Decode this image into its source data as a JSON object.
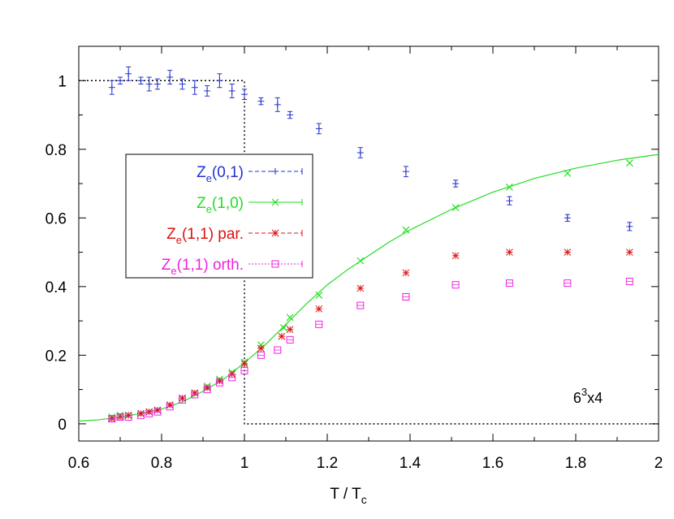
{
  "chart_data": {
    "type": "scatter",
    "xlabel": "T / T",
    "xlabel_sub": "c",
    "ylabel": "",
    "xlim": [
      0.6,
      2.0
    ],
    "ylim": [
      -0.05,
      1.1
    ],
    "xticks": [
      "0.6",
      "0.8",
      "1",
      "1.2",
      "1.4",
      "1.6",
      "1.8",
      "2"
    ],
    "yticks": [
      "0",
      "0.2",
      "0.4",
      "0.6",
      "0.8",
      "1"
    ],
    "annotation": {
      "base": "6",
      "sup": "3",
      "rest": "x4"
    },
    "legend_position": "upper-left",
    "grid": false,
    "series": [
      {
        "name_main": "Z",
        "name_sub": "e",
        "name_rest": "(0,1)",
        "color": "#2233cc",
        "marker": "plus",
        "line": "dashed",
        "points": [
          [
            0.68,
            0.98,
            0.02
          ],
          [
            0.7,
            1.0,
            0.01
          ],
          [
            0.72,
            1.02,
            0.02
          ],
          [
            0.75,
            1.0,
            0.01
          ],
          [
            0.77,
            0.99,
            0.02
          ],
          [
            0.79,
            0.99,
            0.015
          ],
          [
            0.82,
            1.01,
            0.02
          ],
          [
            0.85,
            0.99,
            0.015
          ],
          [
            0.88,
            0.98,
            0.02
          ],
          [
            0.91,
            0.97,
            0.015
          ],
          [
            0.94,
            1.0,
            0.02
          ],
          [
            0.97,
            0.97,
            0.02
          ],
          [
            1.0,
            0.96,
            0.015
          ],
          [
            1.04,
            0.94,
            0.01
          ],
          [
            1.08,
            0.93,
            0.02
          ],
          [
            1.11,
            0.9,
            0.01
          ],
          [
            1.18,
            0.86,
            0.015
          ],
          [
            1.28,
            0.79,
            0.015
          ],
          [
            1.39,
            0.735,
            0.015
          ],
          [
            1.51,
            0.7,
            0.01
          ],
          [
            1.64,
            0.65,
            0.012
          ],
          [
            1.78,
            0.6,
            0.01
          ],
          [
            1.93,
            0.575,
            0.012
          ]
        ]
      },
      {
        "name_main": "Z",
        "name_sub": "e",
        "name_rest": "(1,0)",
        "color": "#22dd22",
        "marker": "cross",
        "line": "solid",
        "points": [
          [
            0.68,
            0.02
          ],
          [
            0.7,
            0.025
          ],
          [
            0.72,
            0.025
          ],
          [
            0.75,
            0.03
          ],
          [
            0.77,
            0.035
          ],
          [
            0.79,
            0.04
          ],
          [
            0.82,
            0.055
          ],
          [
            0.85,
            0.075
          ],
          [
            0.88,
            0.09
          ],
          [
            0.91,
            0.11
          ],
          [
            0.94,
            0.13
          ],
          [
            0.97,
            0.15
          ],
          [
            1.0,
            0.18
          ],
          [
            1.04,
            0.23
          ],
          [
            1.095,
            0.28
          ],
          [
            1.11,
            0.31
          ],
          [
            1.18,
            0.375
          ],
          [
            1.28,
            0.475
          ],
          [
            1.39,
            0.565
          ],
          [
            1.51,
            0.63
          ],
          [
            1.64,
            0.69
          ],
          [
            1.78,
            0.73
          ],
          [
            1.93,
            0.76
          ]
        ],
        "fit_curve": [
          [
            0.6,
            0.008
          ],
          [
            0.65,
            0.012
          ],
          [
            0.7,
            0.02
          ],
          [
            0.75,
            0.03
          ],
          [
            0.8,
            0.043
          ],
          [
            0.85,
            0.064
          ],
          [
            0.9,
            0.095
          ],
          [
            0.95,
            0.13
          ],
          [
            1.0,
            0.178
          ],
          [
            1.05,
            0.23
          ],
          [
            1.1,
            0.29
          ],
          [
            1.15,
            0.35
          ],
          [
            1.2,
            0.405
          ],
          [
            1.25,
            0.45
          ],
          [
            1.3,
            0.49
          ],
          [
            1.35,
            0.53
          ],
          [
            1.4,
            0.565
          ],
          [
            1.5,
            0.625
          ],
          [
            1.6,
            0.675
          ],
          [
            1.7,
            0.715
          ],
          [
            1.8,
            0.745
          ],
          [
            1.9,
            0.768
          ],
          [
            2.0,
            0.785
          ]
        ]
      },
      {
        "name_main": "Z",
        "name_sub": "e",
        "name_rest": "(1,1) par.",
        "color": "#dd1111",
        "marker": "star",
        "line": "dashed",
        "points": [
          [
            0.68,
            0.015
          ],
          [
            0.7,
            0.02
          ],
          [
            0.72,
            0.025
          ],
          [
            0.75,
            0.03
          ],
          [
            0.77,
            0.035
          ],
          [
            0.79,
            0.04
          ],
          [
            0.82,
            0.055
          ],
          [
            0.85,
            0.075
          ],
          [
            0.88,
            0.09
          ],
          [
            0.91,
            0.105
          ],
          [
            0.94,
            0.125
          ],
          [
            0.97,
            0.145
          ],
          [
            1.0,
            0.175
          ],
          [
            1.04,
            0.22
          ],
          [
            1.09,
            0.255
          ],
          [
            1.11,
            0.275
          ],
          [
            1.18,
            0.335
          ],
          [
            1.28,
            0.395
          ],
          [
            1.39,
            0.44
          ],
          [
            1.51,
            0.49
          ],
          [
            1.64,
            0.5
          ],
          [
            1.78,
            0.5
          ],
          [
            1.93,
            0.5
          ]
        ]
      },
      {
        "name_main": "Z",
        "name_sub": "e",
        "name_rest": "(1,1) orth.",
        "color": "#ee22dd",
        "marker": "square",
        "line": "dotted",
        "points": [
          [
            0.68,
            0.015
          ],
          [
            0.7,
            0.02
          ],
          [
            0.72,
            0.02
          ],
          [
            0.75,
            0.025
          ],
          [
            0.77,
            0.03
          ],
          [
            0.79,
            0.035
          ],
          [
            0.82,
            0.05
          ],
          [
            0.85,
            0.07
          ],
          [
            0.88,
            0.085
          ],
          [
            0.91,
            0.1
          ],
          [
            0.94,
            0.12
          ],
          [
            0.97,
            0.135
          ],
          [
            1.0,
            0.155
          ],
          [
            1.04,
            0.2
          ],
          [
            1.08,
            0.215
          ],
          [
            1.11,
            0.245
          ],
          [
            1.18,
            0.29
          ],
          [
            1.28,
            0.345
          ],
          [
            1.39,
            0.37
          ],
          [
            1.51,
            0.405
          ],
          [
            1.64,
            0.41
          ],
          [
            1.78,
            0.41
          ],
          [
            1.93,
            0.415
          ]
        ]
      }
    ],
    "step_line": {
      "color": "#000000",
      "points": [
        [
          0.6,
          1.0
        ],
        [
          1.0,
          1.0
        ],
        [
          1.0,
          0.0
        ],
        [
          2.0,
          0.0
        ]
      ]
    }
  }
}
